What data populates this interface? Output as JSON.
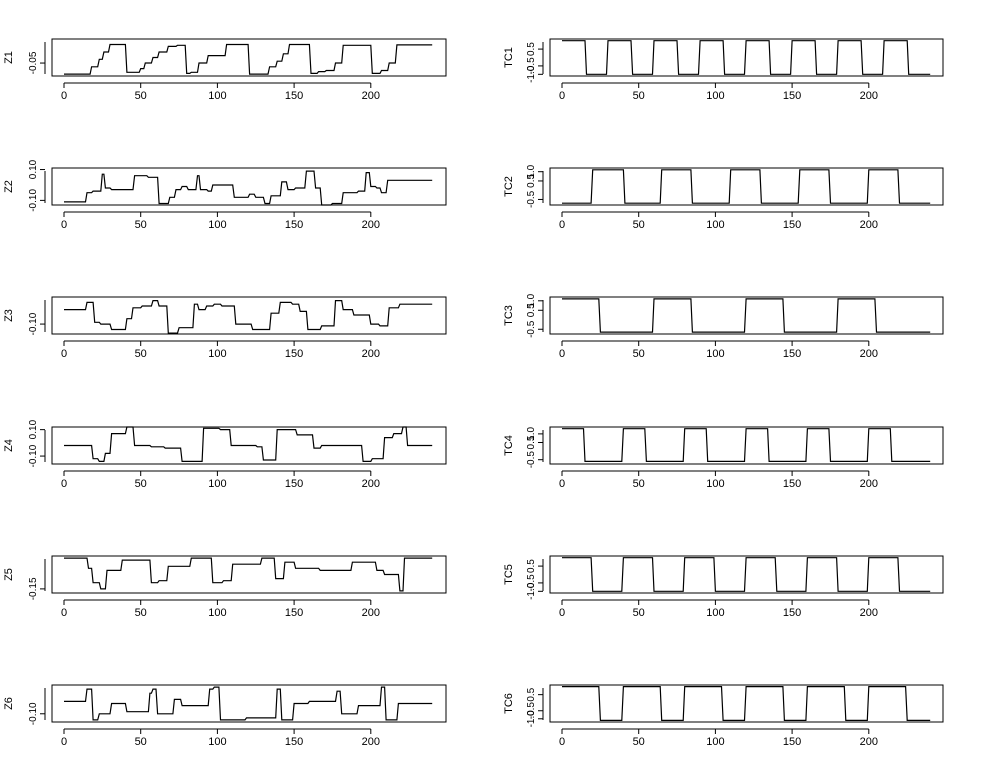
{
  "figure": {
    "background": "#ffffff",
    "line_color": "#000000"
  },
  "chart_data": [
    {
      "id": "Z1",
      "type": "line",
      "ylabel": "Z1",
      "xlim": [
        0,
        240
      ],
      "ylim": [
        -0.085,
        0.015
      ],
      "xticks": [
        0,
        50,
        100,
        150,
        200
      ],
      "yticks": [
        -0.05
      ],
      "ytick_labels": [
        "-0.05"
      ],
      "x": [
        0,
        17,
        18,
        22,
        23,
        25,
        26,
        29,
        30,
        40,
        41,
        49,
        50,
        52,
        53,
        57,
        58,
        61,
        62,
        67,
        68,
        73,
        74,
        79,
        80,
        82,
        83,
        87,
        88,
        93,
        94,
        105,
        106,
        120,
        121,
        133,
        134,
        138,
        139,
        142,
        143,
        146,
        147,
        160,
        161,
        165,
        166,
        170,
        171,
        176,
        177,
        181,
        182,
        200,
        201,
        206,
        207,
        211,
        212,
        216,
        217,
        240
      ],
      "y": [
        -0.08,
        -0.08,
        -0.06,
        -0.06,
        -0.04,
        -0.04,
        -0.02,
        -0.02,
        0.0,
        0.0,
        -0.075,
        -0.075,
        -0.065,
        -0.065,
        -0.05,
        -0.05,
        -0.035,
        -0.035,
        -0.02,
        -0.02,
        -0.005,
        -0.005,
        -0.002,
        -0.002,
        -0.078,
        -0.078,
        -0.075,
        -0.075,
        -0.05,
        -0.05,
        -0.03,
        -0.03,
        0.0,
        0.0,
        -0.08,
        -0.08,
        -0.06,
        -0.06,
        -0.045,
        -0.045,
        -0.025,
        -0.025,
        0.0,
        0.0,
        -0.078,
        -0.078,
        -0.073,
        -0.073,
        -0.07,
        -0.07,
        -0.05,
        -0.05,
        -0.002,
        -0.002,
        -0.078,
        -0.078,
        -0.07,
        -0.07,
        -0.05,
        -0.05,
        -0.001,
        -0.001
      ]
    },
    {
      "id": "Z2",
      "type": "line",
      "ylabel": "Z2",
      "xlim": [
        0,
        240
      ],
      "ylim": [
        -0.13,
        0.11
      ],
      "xticks": [
        0,
        50,
        100,
        150,
        200
      ],
      "yticks": [
        -0.1,
        0.1
      ],
      "ytick_labels": [
        "-0.10",
        "0.10"
      ],
      "x": [
        0,
        14,
        15,
        18,
        19,
        24,
        25,
        26,
        27,
        30,
        31,
        45,
        46,
        54,
        55,
        61,
        62,
        68,
        69,
        72,
        73,
        76,
        77,
        80,
        81,
        86,
        87,
        88,
        89,
        93,
        94,
        96,
        97,
        106,
        107,
        110,
        111,
        120,
        121,
        124,
        125,
        130,
        131,
        134,
        135,
        141,
        142,
        145,
        146,
        150,
        151,
        157,
        158,
        163,
        164,
        167,
        168,
        174,
        175,
        181,
        182,
        191,
        192,
        196,
        197,
        199,
        200,
        203,
        204,
        206,
        207,
        210,
        211,
        218,
        219,
        223,
        224,
        240
      ],
      "y": [
        -0.11,
        -0.11,
        -0.05,
        -0.05,
        -0.04,
        -0.04,
        0.07,
        0.07,
        -0.02,
        -0.02,
        -0.03,
        -0.03,
        0.06,
        0.06,
        0.05,
        0.05,
        -0.12,
        -0.12,
        -0.08,
        -0.08,
        -0.03,
        -0.03,
        -0.01,
        -0.01,
        -0.03,
        -0.03,
        0.06,
        0.06,
        -0.03,
        -0.03,
        -0.04,
        -0.04,
        0.0,
        0.0,
        0.0,
        0.0,
        -0.08,
        -0.08,
        -0.06,
        -0.06,
        -0.08,
        -0.08,
        -0.12,
        -0.12,
        -0.07,
        -0.07,
        0.02,
        0.02,
        -0.03,
        -0.03,
        -0.02,
        -0.02,
        0.09,
        0.09,
        -0.02,
        -0.02,
        -0.13,
        -0.13,
        -0.12,
        -0.12,
        -0.05,
        -0.05,
        -0.04,
        -0.04,
        0.08,
        0.08,
        -0.01,
        -0.01,
        -0.02,
        -0.02,
        -0.05,
        -0.05,
        0.03,
        0.03,
        0.03,
        0.03,
        0.03,
        0.03
      ]
    },
    {
      "id": "Z3",
      "type": "line",
      "ylabel": "Z3",
      "xlim": [
        0,
        240
      ],
      "ylim": [
        -0.155,
        0.05
      ],
      "xticks": [
        0,
        50,
        100,
        150,
        200
      ],
      "yticks": [
        -0.1
      ],
      "ytick_labels": [
        "-0.10"
      ],
      "x": [
        0,
        14,
        15,
        19,
        20,
        23,
        24,
        30,
        31,
        40,
        41,
        44,
        45,
        50,
        51,
        57,
        58,
        61,
        62,
        67,
        68,
        74,
        75,
        84,
        85,
        87,
        88,
        92,
        93,
        97,
        98,
        102,
        103,
        111,
        112,
        122,
        123,
        134,
        135,
        140,
        141,
        148,
        149,
        153,
        154,
        158,
        159,
        167,
        168,
        176,
        177,
        181,
        182,
        188,
        189,
        199,
        200,
        205,
        206,
        211,
        212,
        218,
        219,
        240
      ],
      "y": [
        -0.02,
        -0.02,
        0.02,
        0.02,
        -0.09,
        -0.09,
        -0.1,
        -0.1,
        -0.13,
        -0.13,
        -0.07,
        -0.07,
        -0.01,
        -0.01,
        0.0,
        0.0,
        0.03,
        0.03,
        0.0,
        0.0,
        -0.15,
        -0.15,
        -0.12,
        -0.12,
        0.01,
        0.01,
        -0.02,
        -0.02,
        0.0,
        0.0,
        0.01,
        0.01,
        0.0,
        0.0,
        -0.1,
        -0.1,
        -0.13,
        -0.13,
        -0.04,
        -0.04,
        0.02,
        0.02,
        0.01,
        0.01,
        -0.03,
        -0.03,
        -0.13,
        -0.13,
        -0.11,
        -0.11,
        0.03,
        0.03,
        -0.02,
        -0.02,
        -0.05,
        -0.05,
        -0.1,
        -0.1,
        -0.11,
        -0.11,
        -0.01,
        -0.01,
        0.01,
        0.01
      ]
    },
    {
      "id": "Z4",
      "type": "line",
      "ylabel": "Z4",
      "xlim": [
        0,
        240
      ],
      "ylim": [
        -0.16,
        0.12
      ],
      "xticks": [
        0,
        50,
        100,
        150,
        200
      ],
      "yticks": [
        -0.1,
        0.1
      ],
      "ytick_labels": [
        "-0.10",
        "0.10"
      ],
      "x": [
        0,
        15,
        16,
        18,
        19,
        22,
        23,
        26,
        27,
        30,
        31,
        40,
        41,
        45,
        46,
        56,
        57,
        65,
        66,
        76,
        77,
        85,
        86,
        90,
        91,
        101,
        102,
        108,
        109,
        125,
        126,
        129,
        130,
        138,
        139,
        151,
        152,
        162,
        163,
        167,
        168,
        194,
        195,
        200,
        201,
        208,
        209,
        214,
        215,
        220,
        221,
        223,
        224,
        240
      ],
      "y": [
        -0.02,
        -0.02,
        -0.02,
        -0.02,
        -0.12,
        -0.12,
        -0.14,
        -0.14,
        -0.08,
        -0.08,
        0.07,
        0.07,
        0.12,
        0.12,
        -0.02,
        -0.02,
        -0.03,
        -0.03,
        -0.04,
        -0.04,
        -0.14,
        -0.14,
        -0.14,
        -0.14,
        0.11,
        0.11,
        0.1,
        0.1,
        -0.02,
        -0.02,
        -0.03,
        -0.03,
        -0.13,
        -0.13,
        0.1,
        0.1,
        0.06,
        0.06,
        -0.04,
        -0.04,
        -0.02,
        -0.02,
        -0.14,
        -0.14,
        -0.12,
        -0.12,
        0.04,
        0.04,
        0.07,
        0.07,
        0.12,
        0.12,
        -0.02,
        -0.02
      ],
      "note": ""
    },
    {
      "id": "Z5",
      "type": "line",
      "ylabel": "Z5",
      "xlim": [
        0,
        240
      ],
      "ylim": [
        -0.17,
        0.01
      ],
      "xticks": [
        0,
        50,
        100,
        150,
        200
      ],
      "yticks": [
        -0.15
      ],
      "ytick_labels": [
        "-0.15"
      ],
      "x": [
        0,
        15,
        16,
        18,
        19,
        23,
        24,
        27,
        28,
        37,
        38,
        56,
        57,
        61,
        62,
        67,
        68,
        82,
        83,
        96,
        97,
        103,
        104,
        109,
        110,
        128,
        129,
        137,
        138,
        143,
        144,
        150,
        151,
        166,
        167,
        187,
        188,
        203,
        204,
        208,
        209,
        218,
        219,
        221,
        222,
        240
      ],
      "y": [
        0.0,
        0.0,
        -0.05,
        -0.05,
        -0.12,
        -0.12,
        -0.15,
        -0.15,
        -0.06,
        -0.06,
        -0.01,
        -0.01,
        -0.12,
        -0.12,
        -0.11,
        -0.11,
        -0.04,
        -0.04,
        0.0,
        0.0,
        -0.12,
        -0.12,
        -0.11,
        -0.11,
        -0.03,
        -0.03,
        0.0,
        0.0,
        -0.1,
        -0.1,
        -0.02,
        -0.02,
        -0.05,
        -0.05,
        -0.06,
        -0.06,
        -0.02,
        -0.02,
        -0.06,
        -0.06,
        -0.08,
        -0.08,
        -0.16,
        -0.16,
        0.0,
        0.0
      ]
    },
    {
      "id": "Z6",
      "type": "line",
      "ylabel": "Z6",
      "xlim": [
        0,
        240
      ],
      "ylim": [
        -0.14,
        0.04
      ],
      "xticks": [
        0,
        50,
        100,
        150,
        200
      ],
      "yticks": [
        -0.1
      ],
      "ytick_labels": [
        "-0.10"
      ],
      "x": [
        0,
        14,
        15,
        18,
        19,
        22,
        23,
        30,
        31,
        40,
        41,
        55,
        56,
        57,
        58,
        60,
        61,
        71,
        72,
        76,
        77,
        94,
        95,
        97,
        98,
        101,
        102,
        118,
        119,
        138,
        139,
        141,
        142,
        149,
        150,
        159,
        160,
        177,
        178,
        180,
        181,
        191,
        192,
        206,
        207,
        209,
        210,
        217,
        218,
        240
      ],
      "y": [
        -0.04,
        -0.04,
        0.02,
        0.02,
        -0.13,
        -0.13,
        -0.1,
        -0.1,
        -0.05,
        -0.05,
        -0.09,
        -0.09,
        0.0,
        0.0,
        0.02,
        0.02,
        -0.1,
        -0.1,
        -0.03,
        -0.03,
        -0.06,
        -0.06,
        0.02,
        0.02,
        0.03,
        0.03,
        -0.13,
        -0.13,
        -0.12,
        -0.12,
        0.02,
        0.02,
        -0.13,
        -0.13,
        -0.05,
        -0.05,
        -0.04,
        -0.04,
        0.01,
        0.01,
        -0.1,
        -0.1,
        -0.06,
        -0.06,
        0.03,
        0.03,
        -0.13,
        -0.13,
        -0.05,
        -0.05
      ]
    },
    {
      "id": "TC1",
      "type": "line",
      "ylabel": "TC1",
      "xlim": [
        0,
        240
      ],
      "ylim": [
        -1.1,
        1.1
      ],
      "xticks": [
        0,
        50,
        100,
        150,
        200
      ],
      "yticks": [
        -1.0,
        -0.5,
        0.5
      ],
      "ytick_labels": [
        "-1.0",
        "-0.5",
        "0.5"
      ],
      "x": [
        0,
        15,
        16,
        29,
        30,
        45,
        46,
        59,
        60,
        75,
        76,
        89,
        90,
        105,
        106,
        119,
        120,
        135,
        136,
        149,
        150,
        165,
        166,
        179,
        180,
        195,
        196,
        209,
        210,
        225,
        226,
        240
      ],
      "y": [
        1,
        1,
        -1,
        -1,
        1,
        1,
        -1,
        -1,
        1,
        1,
        -1,
        -1,
        1,
        1,
        -1,
        -1,
        1,
        1,
        -1,
        -1,
        1,
        1,
        -1,
        -1,
        1,
        1,
        -1,
        -1,
        1,
        1,
        -1,
        -1
      ]
    },
    {
      "id": "TC2",
      "type": "line",
      "ylabel": "TC2",
      "xlim": [
        0,
        240
      ],
      "ylim": [
        -0.8,
        1.2
      ],
      "xticks": [
        0,
        50,
        100,
        150,
        200
      ],
      "yticks": [
        -0.5,
        0.5,
        1.0
      ],
      "ytick_labels": [
        "-0.5",
        "0.5",
        "1.0"
      ],
      "x": [
        0,
        19,
        20,
        40,
        41,
        64,
        65,
        84,
        85,
        109,
        110,
        129,
        130,
        154,
        155,
        174,
        175,
        199,
        200,
        219,
        220,
        240
      ],
      "y": [
        -0.7,
        -0.7,
        1.1,
        1.1,
        -0.7,
        -0.7,
        1.1,
        1.1,
        -0.7,
        -0.7,
        1.1,
        1.1,
        -0.7,
        -0.7,
        1.1,
        1.1,
        -0.7,
        -0.7,
        1.1,
        1.1,
        -0.7,
        -0.7
      ]
    },
    {
      "id": "TC3",
      "type": "line",
      "ylabel": "TC3",
      "xlim": [
        0,
        240
      ],
      "ylim": [
        -0.75,
        1.2
      ],
      "xticks": [
        0,
        50,
        100,
        150,
        200
      ],
      "yticks": [
        -0.5,
        0.5,
        1.0
      ],
      "ytick_labels": [
        "-0.5",
        "0.5",
        "1.0"
      ],
      "x": [
        0,
        24,
        25,
        59,
        60,
        84,
        85,
        119,
        120,
        144,
        145,
        179,
        180,
        204,
        205,
        240
      ],
      "y": [
        1.1,
        1.1,
        -0.65,
        -0.65,
        1.1,
        1.1,
        -0.65,
        -0.65,
        1.1,
        1.1,
        -0.65,
        -0.65,
        1.1,
        1.1,
        -0.65,
        -0.65
      ]
    },
    {
      "id": "TC4",
      "type": "line",
      "ylabel": "TC4",
      "xlim": [
        0,
        240
      ],
      "ylim": [
        -0.75,
        1.4
      ],
      "xticks": [
        0,
        50,
        100,
        150,
        200
      ],
      "yticks": [
        -0.5,
        0.5,
        1.0
      ],
      "ytick_labels": [
        "-0.5",
        "0.5",
        "1.0"
      ],
      "x": [
        0,
        14,
        15,
        39,
        40,
        54,
        55,
        79,
        80,
        94,
        95,
        119,
        120,
        134,
        135,
        159,
        160,
        174,
        175,
        199,
        200,
        214,
        215,
        240
      ],
      "y": [
        1.3,
        1.3,
        -0.6,
        -0.6,
        1.3,
        1.3,
        -0.6,
        -0.6,
        1.3,
        1.3,
        -0.6,
        -0.6,
        1.3,
        1.3,
        -0.6,
        -0.6,
        1.3,
        1.3,
        -0.6,
        -0.6,
        1.3,
        1.3,
        -0.6,
        -0.6
      ]
    },
    {
      "id": "TC5",
      "type": "line",
      "ylabel": "TC5",
      "xlim": [
        0,
        240
      ],
      "ylim": [
        -1.1,
        1.1
      ],
      "xticks": [
        0,
        50,
        100,
        150,
        200
      ],
      "yticks": [
        -1.0,
        -0.5,
        0.5
      ],
      "ytick_labels": [
        "-1.0",
        "-0.5",
        "0.5"
      ],
      "x": [
        0,
        19,
        20,
        39,
        40,
        59,
        60,
        79,
        80,
        99,
        100,
        119,
        120,
        139,
        140,
        159,
        160,
        179,
        180,
        199,
        200,
        219,
        220,
        240
      ],
      "y": [
        1,
        1,
        -1,
        -1,
        1,
        1,
        -1,
        -1,
        1,
        1,
        -1,
        -1,
        1,
        1,
        -1,
        -1,
        1,
        1,
        -1,
        -1,
        1,
        1,
        -1,
        -1
      ]
    },
    {
      "id": "TC6",
      "type": "line",
      "ylabel": "TC6",
      "xlim": [
        0,
        240
      ],
      "ylim": [
        -1.2,
        1.1
      ],
      "xticks": [
        0,
        50,
        100,
        150,
        200
      ],
      "yticks": [
        -1.0,
        -0.5,
        0.5
      ],
      "ytick_labels": [
        "-1.0",
        "-0.5",
        "0.5"
      ],
      "x": [
        0,
        24,
        25,
        39,
        40,
        64,
        65,
        79,
        80,
        104,
        105,
        119,
        120,
        144,
        145,
        159,
        160,
        184,
        185,
        199,
        200,
        224,
        225,
        240
      ],
      "y": [
        1,
        1,
        -1.1,
        -1.1,
        1,
        1,
        -1.1,
        -1.1,
        1,
        1,
        -1.1,
        -1.1,
        1,
        1,
        -1.1,
        -1.1,
        1,
        1,
        -1.1,
        -1.1,
        1,
        1,
        -1.1,
        -1.1
      ]
    }
  ]
}
